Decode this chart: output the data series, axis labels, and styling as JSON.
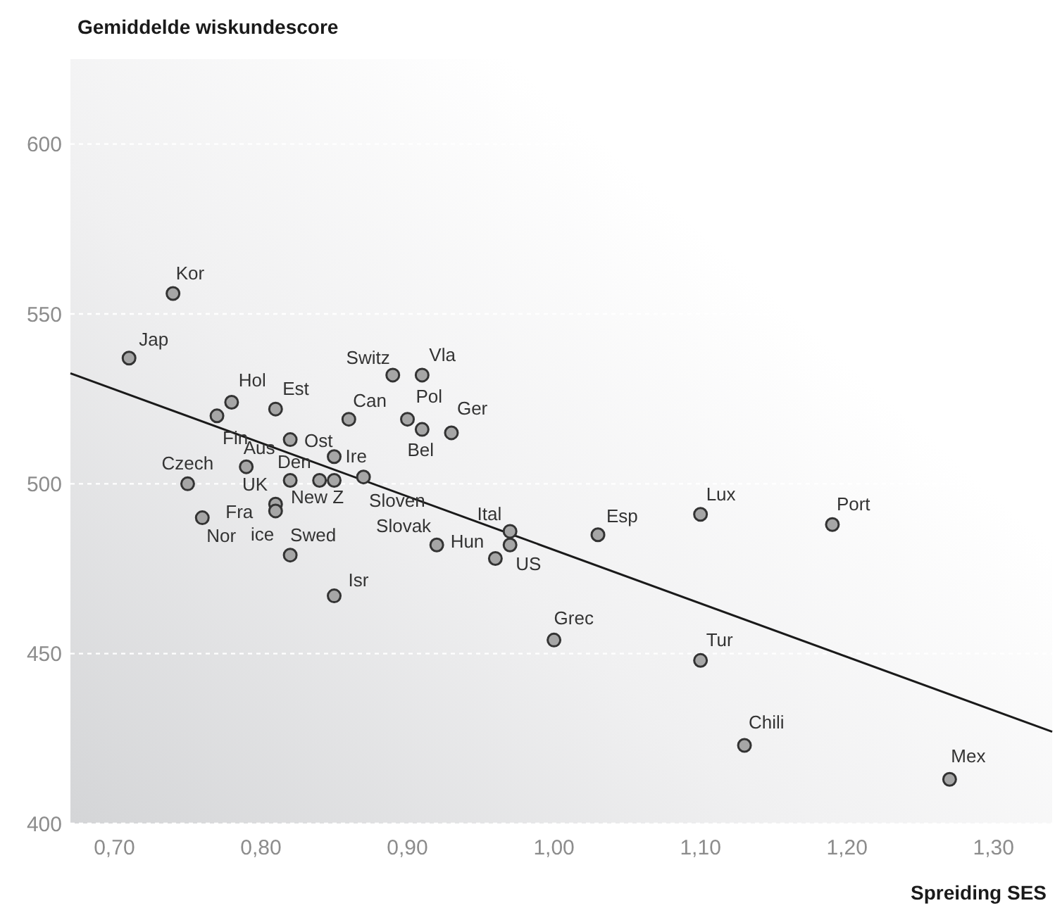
{
  "chart_data": {
    "type": "scatter",
    "ylabel": "Gemiddelde wiskundescore",
    "xlabel": "Spreiding SES",
    "xlim": [
      0.67,
      1.34
    ],
    "ylim": [
      400,
      625
    ],
    "xticks": [
      {
        "value": 0.7,
        "label": "0,70"
      },
      {
        "value": 0.8,
        "label": "0,80"
      },
      {
        "value": 0.9,
        "label": "0,90"
      },
      {
        "value": 1.0,
        "label": "1,00"
      },
      {
        "value": 1.1,
        "label": "1,10"
      },
      {
        "value": 1.2,
        "label": "1,20"
      },
      {
        "value": 1.3,
        "label": "1,30"
      }
    ],
    "yticks": [
      400,
      450,
      500,
      550,
      600
    ],
    "grid": "y",
    "series": [
      {
        "marker": "circle",
        "color": "#a6a6a6",
        "x": [
          0.74,
          0.71,
          0.78,
          0.77,
          0.81,
          0.86,
          0.82,
          0.85,
          0.79,
          0.75,
          0.82,
          0.84,
          0.85,
          0.87,
          0.76,
          0.81,
          0.81,
          0.82,
          0.85,
          0.89,
          0.91,
          0.9,
          0.91,
          0.93,
          0.92,
          0.96,
          0.97,
          0.97,
          1.03,
          1.0,
          1.1,
          1.19,
          1.1,
          1.13,
          1.27
        ],
        "values": [
          556,
          537,
          524,
          520,
          522,
          519,
          513,
          508,
          505,
          500,
          501,
          501,
          501,
          502,
          490,
          494,
          492,
          479,
          467,
          532,
          532,
          519,
          516,
          515,
          482,
          478,
          486,
          482,
          485,
          454,
          491,
          488,
          448,
          423,
          413
        ]
      },
      {
        "type": "line",
        "color": "#1a1a1a",
        "x": [
          0.67,
          1.34
        ],
        "values": [
          532.5,
          427
        ]
      }
    ],
    "annotations": [
      {
        "text": "Kor",
        "x": 0.74,
        "y": 556
      },
      {
        "text": "Jap",
        "x": 0.71,
        "y": 537
      },
      {
        "text": "Hol",
        "x": 0.78,
        "y": 524
      },
      {
        "text": "Fin",
        "x": 0.77,
        "y": 520
      },
      {
        "text": "Est",
        "x": 0.81,
        "y": 522
      },
      {
        "text": "Can",
        "x": 0.86,
        "y": 519
      },
      {
        "text": "Ost",
        "x": 0.82,
        "y": 513
      },
      {
        "text": "Ire",
        "x": 0.85,
        "y": 508
      },
      {
        "text": "Aus",
        "x": 0.79,
        "y": 505
      },
      {
        "text": "Czech",
        "x": 0.75,
        "y": 500
      },
      {
        "text": "UK",
        "x": 0.82,
        "y": 501
      },
      {
        "text": "Den",
        "x": 0.84,
        "y": 501
      },
      {
        "text": "New Z",
        "x": 0.85,
        "y": 501
      },
      {
        "text": "Sloven",
        "x": 0.87,
        "y": 502
      },
      {
        "text": "Nor",
        "x": 0.76,
        "y": 490
      },
      {
        "text": "Fra",
        "x": 0.81,
        "y": 494
      },
      {
        "text": "ice",
        "x": 0.81,
        "y": 492
      },
      {
        "text": "Swed",
        "x": 0.82,
        "y": 479
      },
      {
        "text": "Isr",
        "x": 0.85,
        "y": 467
      },
      {
        "text": "Switz",
        "x": 0.89,
        "y": 532
      },
      {
        "text": "Vla",
        "x": 0.91,
        "y": 532
      },
      {
        "text": "Pol",
        "x": 0.9,
        "y": 519
      },
      {
        "text": "Bel",
        "x": 0.91,
        "y": 516
      },
      {
        "text": "Ger",
        "x": 0.93,
        "y": 515
      },
      {
        "text": "Slovak",
        "x": 0.92,
        "y": 482
      },
      {
        "text": "Hun",
        "x": 0.96,
        "y": 478
      },
      {
        "text": "Ital",
        "x": 0.97,
        "y": 486
      },
      {
        "text": "US",
        "x": 0.97,
        "y": 482
      },
      {
        "text": "Esp",
        "x": 1.03,
        "y": 485
      },
      {
        "text": "Grec",
        "x": 1.0,
        "y": 454
      },
      {
        "text": "Lux",
        "x": 1.1,
        "y": 491
      },
      {
        "text": "Port",
        "x": 1.19,
        "y": 488
      },
      {
        "text": "Tur",
        "x": 1.1,
        "y": 448
      },
      {
        "text": "Chili",
        "x": 1.13,
        "y": 423
      },
      {
        "text": "Mex",
        "x": 1.27,
        "y": 413
      }
    ]
  }
}
